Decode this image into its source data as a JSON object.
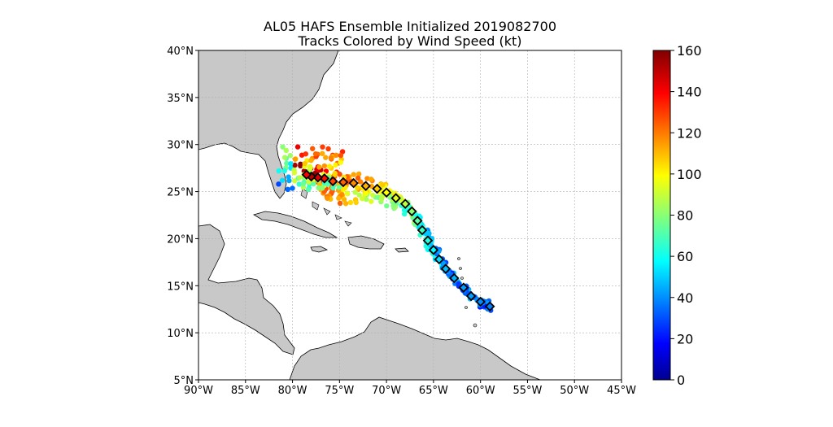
{
  "title_line1": "AL05 HAFS Ensemble Initialized 2019082700",
  "title_line2": "Tracks Colored by Wind Speed (kt)",
  "map": {
    "lon_range": [
      -90,
      -45
    ],
    "lat_range": [
      5,
      40
    ],
    "xticks": [
      -90,
      -85,
      -80,
      -75,
      -70,
      -65,
      -60,
      -55,
      -50,
      -45
    ],
    "xtick_labels": [
      "90°W",
      "85°W",
      "80°W",
      "75°W",
      "70°W",
      "65°W",
      "60°W",
      "55°W",
      "50°W",
      "45°W"
    ],
    "yticks": [
      5,
      10,
      15,
      20,
      25,
      30,
      35,
      40
    ],
    "ytick_labels": [
      "5°N",
      "10°N",
      "15°N",
      "20°N",
      "25°N",
      "30°N",
      "35°N",
      "40°N"
    ],
    "grid": true,
    "land_color": "#c8c8c8",
    "ocean_color": "#ffffff"
  },
  "colorbar": {
    "min": 0,
    "max": 160,
    "ticks": [
      0,
      20,
      40,
      60,
      80,
      100,
      120,
      140,
      160
    ],
    "tick_labels": [
      "0",
      "20",
      "40",
      "60",
      "80",
      "100",
      "120",
      "140",
      "160"
    ],
    "colormap": "jet"
  },
  "chart_data": {
    "type": "scatter",
    "title": "AL05 HAFS Ensemble Initialized 2019082700",
    "subtitle": "Tracks Colored by Wind Speed (kt)",
    "xlim": [
      -90,
      -45
    ],
    "ylim": [
      5,
      40
    ],
    "colorbar_range": [
      0,
      160
    ],
    "series": [
      {
        "marker": "diamond",
        "points": [
          {
            "lon": -59.0,
            "lat": 12.8,
            "wind": 40
          },
          {
            "lon": -60.0,
            "lat": 13.3,
            "wind": 42
          },
          {
            "lon": -61.0,
            "lat": 13.9,
            "wind": 45
          },
          {
            "lon": -61.8,
            "lat": 14.8,
            "wind": 45
          },
          {
            "lon": -62.8,
            "lat": 15.8,
            "wind": 48
          },
          {
            "lon": -63.7,
            "lat": 16.8,
            "wind": 50
          },
          {
            "lon": -64.4,
            "lat": 17.8,
            "wind": 55
          },
          {
            "lon": -65.0,
            "lat": 18.8,
            "wind": 60
          },
          {
            "lon": -65.6,
            "lat": 19.8,
            "wind": 65
          },
          {
            "lon": -66.2,
            "lat": 20.9,
            "wind": 70
          },
          {
            "lon": -66.7,
            "lat": 21.9,
            "wind": 75
          },
          {
            "lon": -67.3,
            "lat": 22.9,
            "wind": 82
          },
          {
            "lon": -68.0,
            "lat": 23.7,
            "wind": 90
          },
          {
            "lon": -69.0,
            "lat": 24.3,
            "wind": 95
          },
          {
            "lon": -70.0,
            "lat": 24.9,
            "wind": 100
          },
          {
            "lon": -71.0,
            "lat": 25.3,
            "wind": 108
          },
          {
            "lon": -72.2,
            "lat": 25.6,
            "wind": 112
          },
          {
            "lon": -73.5,
            "lat": 25.9,
            "wind": 118
          },
          {
            "lon": -74.6,
            "lat": 26.0,
            "wind": 125
          },
          {
            "lon": -75.7,
            "lat": 26.1,
            "wind": 130
          },
          {
            "lon": -76.6,
            "lat": 26.4,
            "wind": 138
          },
          {
            "lon": -77.3,
            "lat": 26.5,
            "wind": 145
          },
          {
            "lon": -78.0,
            "lat": 26.6,
            "wind": 150
          },
          {
            "lon": -78.5,
            "lat": 26.8,
            "wind": 140
          }
        ]
      }
    ]
  }
}
